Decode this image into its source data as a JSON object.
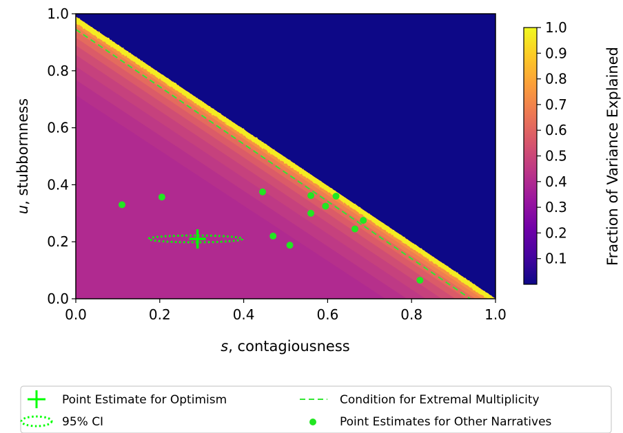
{
  "chart_data": {
    "type": "heatmap",
    "xlabel_var": "s",
    "xlabel_rest": ", contagiousness",
    "ylabel_var": "u",
    "ylabel_rest": ", stubbornness",
    "xlim": [
      0.0,
      1.0
    ],
    "ylim": [
      0.0,
      1.0
    ],
    "xticks": [
      "0.0",
      "0.2",
      "0.4",
      "0.6",
      "0.8",
      "1.0"
    ],
    "yticks": [
      "0.0",
      "0.2",
      "0.4",
      "0.6",
      "0.8",
      "1.0"
    ],
    "colorbar": {
      "label": "Fraction of Variance Explained",
      "ticks": [
        "0.1",
        "0.2",
        "0.3",
        "0.4",
        "0.5",
        "0.6",
        "0.7",
        "0.8",
        "0.9",
        "1.0"
      ],
      "colormap": "plasma",
      "range": [
        0.0,
        1.0
      ]
    },
    "heatmap_boundary": {
      "description": "zero region above line",
      "u_at_s0": 0.99,
      "s_at_u0": 1.0
    },
    "condition_line": {
      "name": "Condition for Extremal Multiplicity",
      "points": [
        [
          0.0,
          0.945
        ],
        [
          0.94,
          0.0
        ]
      ],
      "color": "#33e633"
    },
    "point_estimate": {
      "name": "Point Estimate for Optimism",
      "s": 0.29,
      "u": 0.21,
      "color": "#00ff00"
    },
    "confidence_interval": {
      "name": "95% CI",
      "s_center": 0.285,
      "u_center": 0.21,
      "s_halfwidth": 0.112,
      "u_halfwidth": 0.012,
      "color": "#00ff00"
    },
    "other_points": {
      "name": "Point Estimates for Other Narratives",
      "color": "#22e622",
      "points": [
        {
          "s": 0.11,
          "u": 0.33
        },
        {
          "s": 0.205,
          "u": 0.357
        },
        {
          "s": 0.445,
          "u": 0.375
        },
        {
          "s": 0.47,
          "u": 0.22
        },
        {
          "s": 0.51,
          "u": 0.188
        },
        {
          "s": 0.56,
          "u": 0.362
        },
        {
          "s": 0.56,
          "u": 0.3
        },
        {
          "s": 0.595,
          "u": 0.325
        },
        {
          "s": 0.62,
          "u": 0.36
        },
        {
          "s": 0.665,
          "u": 0.245
        },
        {
          "s": 0.685,
          "u": 0.275
        },
        {
          "s": 0.82,
          "u": 0.065
        }
      ]
    },
    "legend": {
      "placement": "bottom",
      "items": [
        {
          "label": "Point Estimate for Optimism",
          "marker": "plus"
        },
        {
          "label": "Condition for Extremal Multiplicity",
          "marker": "dash"
        },
        {
          "label": "95% CI",
          "marker": "dotted-ellipse"
        },
        {
          "label": "Point Estimates for Other Narratives",
          "marker": "dot"
        }
      ]
    },
    "colors": {
      "background_zero": "#0d0887",
      "plasma": [
        "#0d0887",
        "#46039f",
        "#7201a8",
        "#9c179e",
        "#bd3786",
        "#d8576b",
        "#ed7953",
        "#fb9f3a",
        "#fdca26",
        "#f0f921"
      ]
    }
  }
}
